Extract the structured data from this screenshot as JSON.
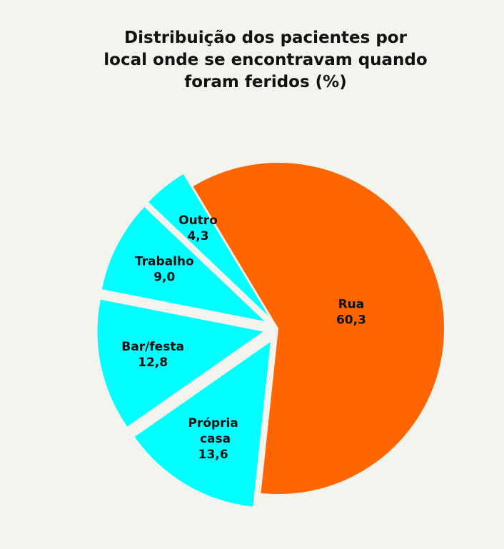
{
  "chart_data": {
    "type": "pie",
    "title": "Distribuição dos pacientes por local onde se encontravam quando foram feridos (%)",
    "categories": [
      "Rua",
      "Própria casa",
      "Bar/festa",
      "Trabalho",
      "Outro"
    ],
    "values": [
      60.3,
      13.6,
      12.8,
      9.0,
      4.3
    ],
    "value_labels": [
      "60,3",
      "13,6",
      "12,8",
      "9,0",
      "4,3"
    ],
    "colors": [
      "#ff6600",
      "#00ffff",
      "#00ffff",
      "#00ffff",
      "#00ffff"
    ]
  }
}
